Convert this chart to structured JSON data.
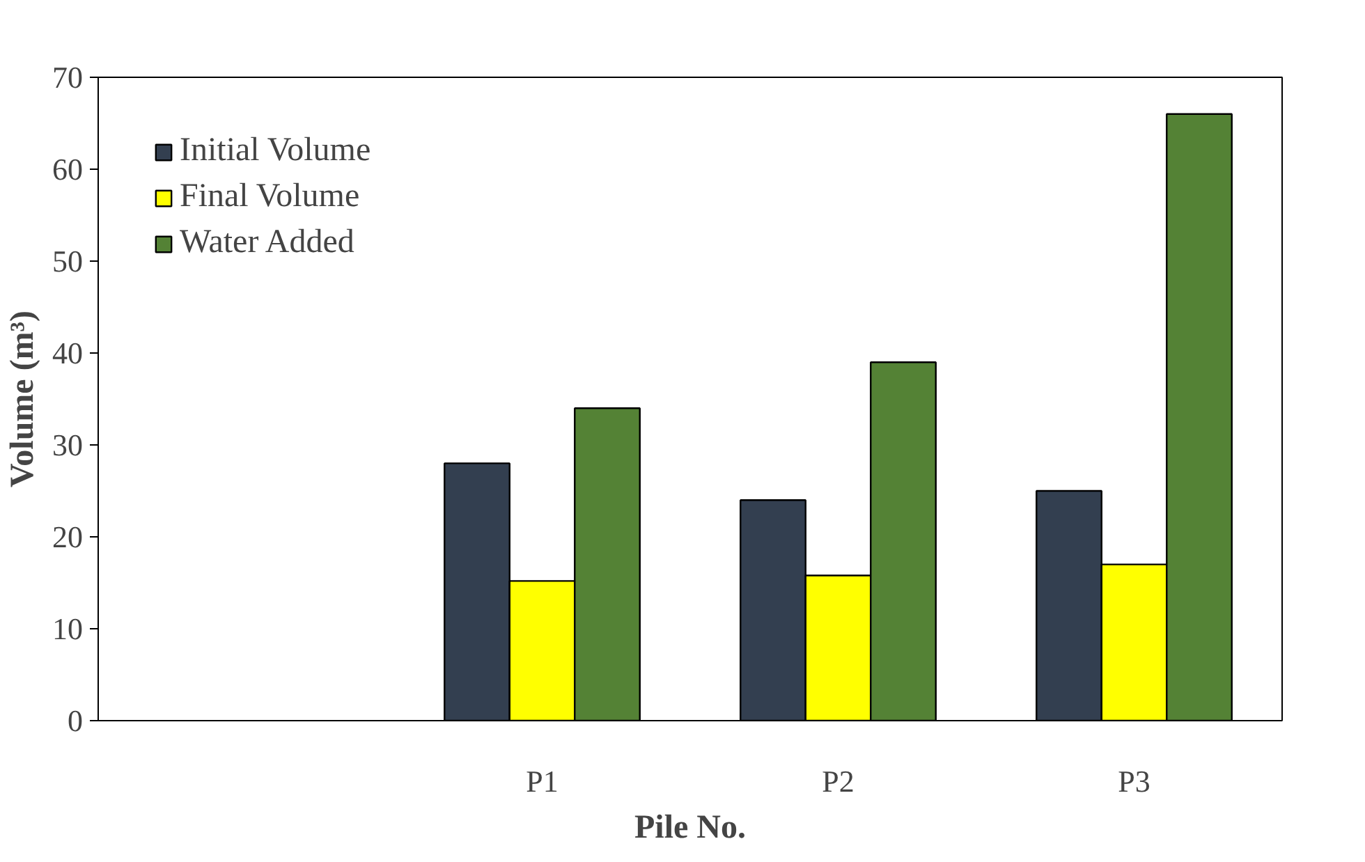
{
  "chart_data": {
    "type": "bar",
    "xlabel": "Pile No.",
    "ylabel": "Volume (m³)",
    "categories": [
      null,
      "P1",
      "P2",
      "P3"
    ],
    "series": [
      {
        "name": "Initial Volume",
        "color": "#333f50",
        "values": [
          null,
          28,
          24,
          25
        ]
      },
      {
        "name": "Final Volume",
        "color": "#ffff00",
        "values": [
          null,
          15.2,
          15.8,
          17
        ]
      },
      {
        "name": "Water Added",
        "color": "#548235",
        "values": [
          null,
          34,
          39,
          66
        ]
      }
    ],
    "ylim": [
      0,
      70
    ],
    "yticks": [
      0,
      10,
      20,
      30,
      40,
      50,
      60,
      70
    ],
    "grid": false,
    "legend": "top left"
  }
}
